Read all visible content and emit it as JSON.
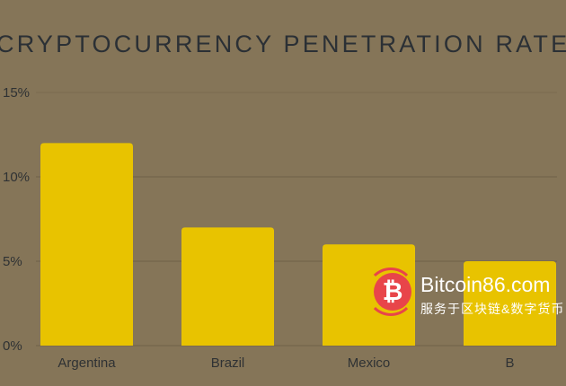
{
  "chart_data": {
    "type": "bar",
    "title": "CRYPTOCURRENCY PENETRATION RATES",
    "categories": [
      "Argentina",
      "Brazil",
      "Mexico",
      "B"
    ],
    "values": [
      12,
      7,
      6,
      5
    ],
    "ylim": [
      0,
      15
    ],
    "yticks": [
      "0%",
      "5%",
      "10%",
      "15%"
    ],
    "ytick_values": [
      0,
      5,
      10,
      15
    ],
    "xlabel": "",
    "ylabel": "",
    "grid": true,
    "bar_color": "#e8c300",
    "grid_color": "#6e6148"
  },
  "watermark": {
    "site": "Bitcoin86.com",
    "subtitle": "服务于区块链&数字货币",
    "logo_glyph": "₿"
  }
}
